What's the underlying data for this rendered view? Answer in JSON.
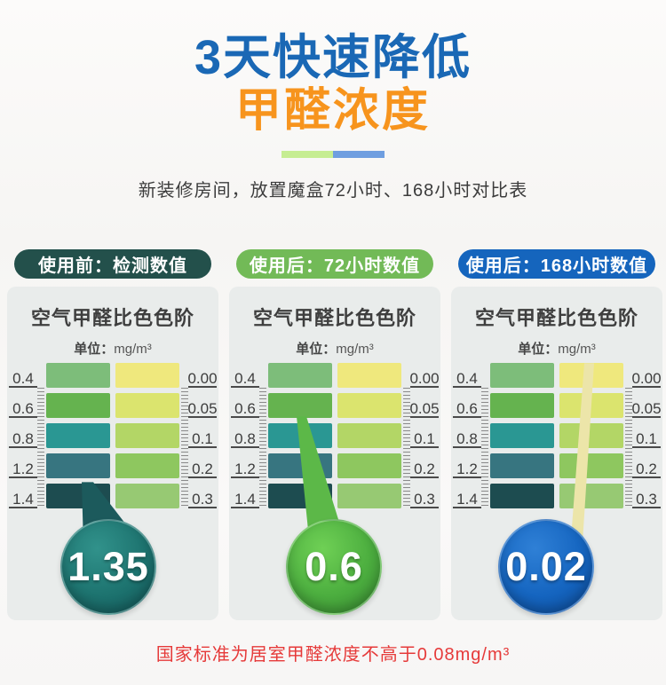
{
  "header": {
    "title_line1": "3天快速降低",
    "title_line2": "甲醛浓度",
    "subtitle": "新装修房间，放置魔盒72小时、168小时对比表"
  },
  "colors": {
    "title_blue": "#1a68b5",
    "title_orange": "#f7941d",
    "divider_green": "#c6ed92",
    "divider_blue": "#6f9ee0",
    "note_red": "#e63a3a",
    "card_bg": "#e9eceb"
  },
  "panels": [
    {
      "badge": "使用前：检测数值",
      "badge_color": "#23504b",
      "chart_title": "空气甲醛比色色阶",
      "unit_label": "单位：",
      "unit_value": "mg/m³",
      "reading": "1.35",
      "circle_color": "#1e7672"
    },
    {
      "badge": "使用后：72小时数值",
      "badge_color": "#72ba57",
      "chart_title": "空气甲醛比色色阶",
      "unit_label": "单位：",
      "unit_value": "mg/m³",
      "reading": "0.6",
      "circle_color": "#4cae3f"
    },
    {
      "badge": "使用后：168小时数值",
      "badge_color": "#1565bd",
      "chart_title": "空气甲醛比色色阶",
      "unit_label": "单位：",
      "unit_value": "mg/m³",
      "reading": "0.02",
      "circle_color": "#1565c0"
    }
  ],
  "chart_data": {
    "type": "heatmap",
    "title": "空气甲醛比色色阶",
    "unit": "mg/m³",
    "left_axis_ticks": [
      "0.4",
      "0.6",
      "0.8",
      "1.2",
      "1.4"
    ],
    "right_axis_ticks": [
      "0.00",
      "0.05",
      "0.1",
      "0.2",
      "0.3"
    ],
    "left_column_colors": [
      "#7dbd7a",
      "#65b34f",
      "#2a9793",
      "#377580",
      "#1d4c50"
    ],
    "right_column_colors": [
      "#efe87d",
      "#dbe46e",
      "#b3d666",
      "#8ec75f",
      "#97c973"
    ],
    "readings": [
      {
        "panel": "使用前：检测数值",
        "value": 1.35
      },
      {
        "panel": "使用后：72小时数值",
        "value": 0.6
      },
      {
        "panel": "使用后：168小时数值",
        "value": 0.02
      }
    ]
  },
  "footer": {
    "note": "国家标准为居室甲醛浓度不高于0.08mg/m³"
  }
}
